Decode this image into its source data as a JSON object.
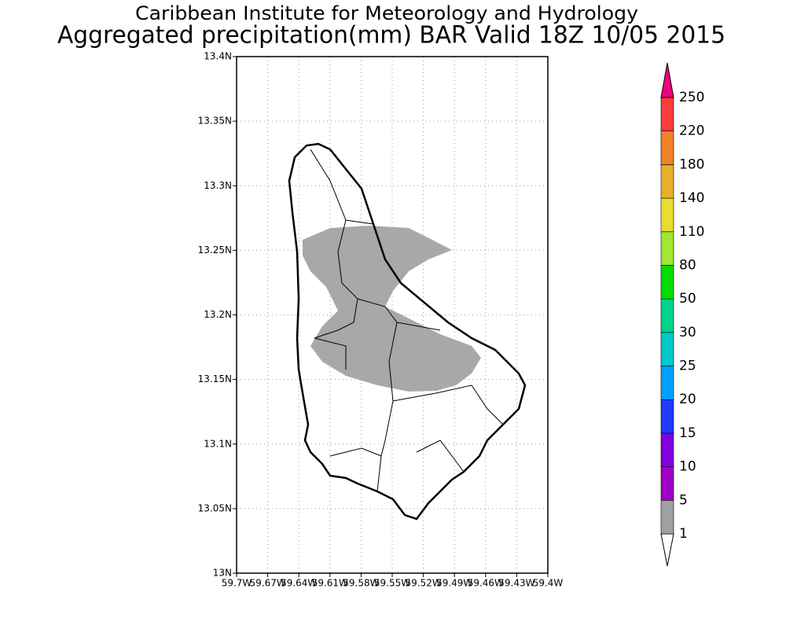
{
  "title": "Caribbean Institute for Meteorology and Hydrology",
  "subtitle": "Aggregated precipitation(mm) BAR Valid 18Z 10/05 2015",
  "map": {
    "xlim": [
      -59.7,
      -59.4
    ],
    "ylim": [
      13,
      13.4
    ],
    "grid": true,
    "xticks": [
      {
        "value": -59.7,
        "label": "59.7W"
      },
      {
        "value": -59.67,
        "label": "59.67W"
      },
      {
        "value": -59.64,
        "label": "59.64W"
      },
      {
        "value": -59.61,
        "label": "59.61W"
      },
      {
        "value": -59.58,
        "label": "59.58W"
      },
      {
        "value": -59.55,
        "label": "59.55W"
      },
      {
        "value": -59.52,
        "label": "59.52W"
      },
      {
        "value": -59.49,
        "label": "59.49W"
      },
      {
        "value": -59.46,
        "label": "59.46W"
      },
      {
        "value": -59.43,
        "label": "59.43W"
      },
      {
        "value": -59.4,
        "label": "59.4W"
      }
    ],
    "yticks": [
      {
        "value": 13,
        "label": "13N"
      },
      {
        "value": 13.05,
        "label": "13.05N"
      },
      {
        "value": 13.1,
        "label": "13.1N"
      },
      {
        "value": 13.15,
        "label": "13.15N"
      },
      {
        "value": 13.2,
        "label": "13.2N"
      },
      {
        "value": 13.25,
        "label": "13.25N"
      },
      {
        "value": 13.3,
        "label": "13.3N"
      },
      {
        "value": 13.35,
        "label": "13.35N"
      },
      {
        "value": 13.4,
        "label": "13.4N"
      }
    ]
  },
  "colorbar": {
    "levels": [
      1,
      5,
      10,
      15,
      20,
      25,
      30,
      50,
      80,
      110,
      140,
      180,
      220,
      250
    ],
    "colors": [
      "#ffffff",
      "#a0a0a0",
      "#a000c8",
      "#8200dc",
      "#1e3cff",
      "#00a0ff",
      "#00c8c8",
      "#00d28c",
      "#00dc00",
      "#a0e632",
      "#e6dc32",
      "#e6af2d",
      "#f08228",
      "#fa3c3c",
      "#f00082"
    ]
  }
}
